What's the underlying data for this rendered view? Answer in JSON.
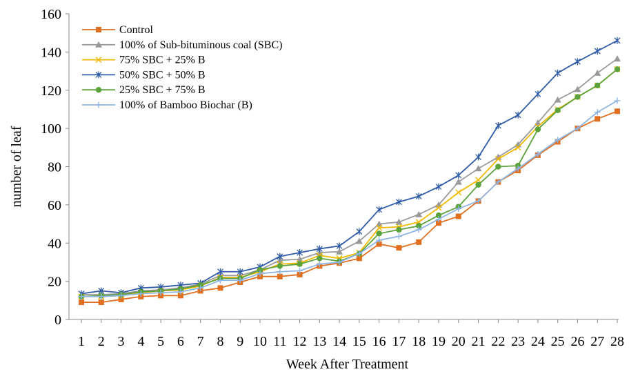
{
  "chart_data": {
    "type": "line",
    "title": "",
    "xlabel": "Week After Treatment",
    "ylabel": "number of leaf",
    "x": [
      1,
      2,
      3,
      4,
      5,
      6,
      7,
      8,
      9,
      10,
      11,
      12,
      13,
      14,
      15,
      16,
      17,
      18,
      19,
      20,
      21,
      22,
      23,
      24,
      25,
      26,
      27,
      28
    ],
    "ylim": [
      0,
      160
    ],
    "yticks": [
      0,
      20,
      40,
      60,
      80,
      100,
      120,
      140,
      160
    ],
    "grid": false,
    "legend_position": "top-left",
    "series": [
      {
        "name": "Control",
        "color": "#E07020",
        "marker": "square",
        "values": [
          9,
          9,
          10.5,
          12,
          12.5,
          12.5,
          15,
          16.5,
          19.5,
          22.5,
          22.5,
          23.5,
          28,
          29.5,
          32,
          39.5,
          37.5,
          40.5,
          50.5,
          54,
          62,
          72,
          78,
          86,
          93,
          100,
          105,
          109
        ]
      },
      {
        "name": "100% of Sub-bituminous coal (SBC)",
        "color": "#999999",
        "marker": "triangle",
        "values": [
          13,
          13,
          13.5,
          15,
          15.5,
          16.5,
          18.5,
          23,
          23,
          26,
          31,
          31.5,
          35,
          35.5,
          41,
          50,
          51,
          55,
          60,
          72,
          79,
          85,
          91.5,
          103,
          115,
          120.5,
          129,
          136.5
        ]
      },
      {
        "name": "75% SBC + 25% B",
        "color": "#F2B800",
        "marker": "x",
        "values": [
          12,
          12,
          12.5,
          14,
          15,
          15.5,
          17.5,
          22,
          22,
          25,
          29,
          29.5,
          33.5,
          32,
          35,
          48,
          48.5,
          51,
          58.5,
          66.5,
          73,
          84,
          90,
          101,
          110,
          116.5,
          122.5,
          131
        ]
      },
      {
        "name": "50% SBC + 50% B",
        "color": "#2F5BA7",
        "marker": "asterisk",
        "values": [
          13.5,
          15,
          14,
          16.5,
          17,
          18,
          19,
          25,
          25,
          27.5,
          33,
          35,
          37,
          38.5,
          46,
          57.5,
          61.5,
          64.5,
          69.5,
          75.5,
          85,
          101.5,
          107,
          118,
          129,
          135,
          140.5,
          146
        ]
      },
      {
        "name": "25% SBC + 75% B",
        "color": "#5BA23A",
        "marker": "circle",
        "values": [
          12,
          12.5,
          13,
          14.5,
          15,
          16,
          18,
          21.5,
          21.5,
          26,
          28,
          29,
          32,
          30.5,
          34.5,
          45,
          47,
          49,
          54.5,
          59,
          70.5,
          80,
          80.5,
          99.5,
          109.5,
          116.5,
          122.5,
          131
        ]
      },
      {
        "name": "100% of Bamboo Biochar (B)",
        "color": "#8EB4E3",
        "marker": "plus",
        "values": [
          12,
          12,
          12.5,
          13.5,
          14,
          14.5,
          16.5,
          20.5,
          20.5,
          24,
          25,
          25.5,
          29,
          30,
          34.5,
          41.5,
          43.5,
          47,
          52.5,
          58,
          62,
          72,
          79,
          86.5,
          94,
          100,
          108.5,
          114.5
        ]
      }
    ]
  }
}
